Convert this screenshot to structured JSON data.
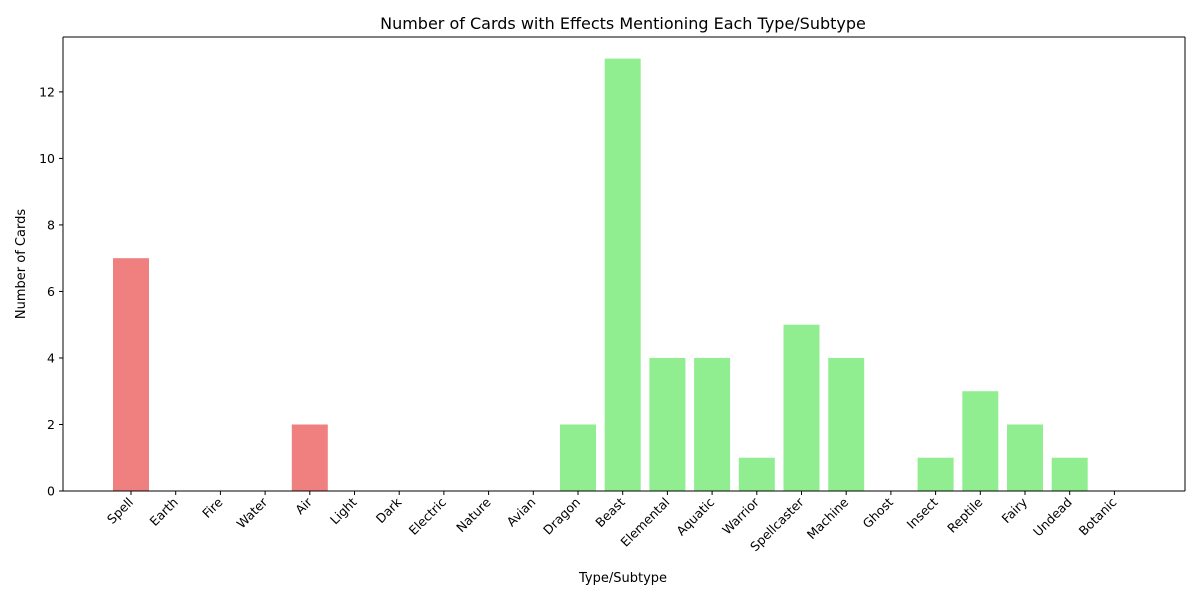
{
  "chart_data": {
    "type": "bar",
    "title": "Number of Cards with Effects Mentioning Each Type/Subtype",
    "xlabel": "Type/Subtype",
    "ylabel": "Number of Cards",
    "categories": [
      "Spell",
      "Earth",
      "Fire",
      "Water",
      "Air",
      "Light",
      "Dark",
      "Electric",
      "Nature",
      "Avian",
      "Dragon",
      "Beast",
      "Elemental",
      "Aquatic",
      "Warrior",
      "Spellcaster",
      "Machine",
      "Ghost",
      "Insect",
      "Reptile",
      "Fairy",
      "Undead",
      "Botanic"
    ],
    "values": [
      7,
      0,
      0,
      0,
      2,
      0,
      0,
      0,
      0,
      0,
      2,
      13,
      4,
      4,
      1,
      5,
      4,
      0,
      1,
      3,
      2,
      1,
      0
    ],
    "bar_colors": [
      "#f08080",
      "#f08080",
      "#f08080",
      "#f08080",
      "#f08080",
      "#f08080",
      "#f08080",
      "#f08080",
      "#f08080",
      "#90ee90",
      "#90ee90",
      "#90ee90",
      "#90ee90",
      "#90ee90",
      "#90ee90",
      "#90ee90",
      "#90ee90",
      "#90ee90",
      "#90ee90",
      "#90ee90",
      "#90ee90",
      "#90ee90",
      "#90ee90"
    ],
    "yticks": [
      0,
      2,
      4,
      6,
      8,
      10,
      12
    ],
    "ylim": [
      0,
      13.65
    ],
    "grid": false,
    "legend": "none"
  }
}
